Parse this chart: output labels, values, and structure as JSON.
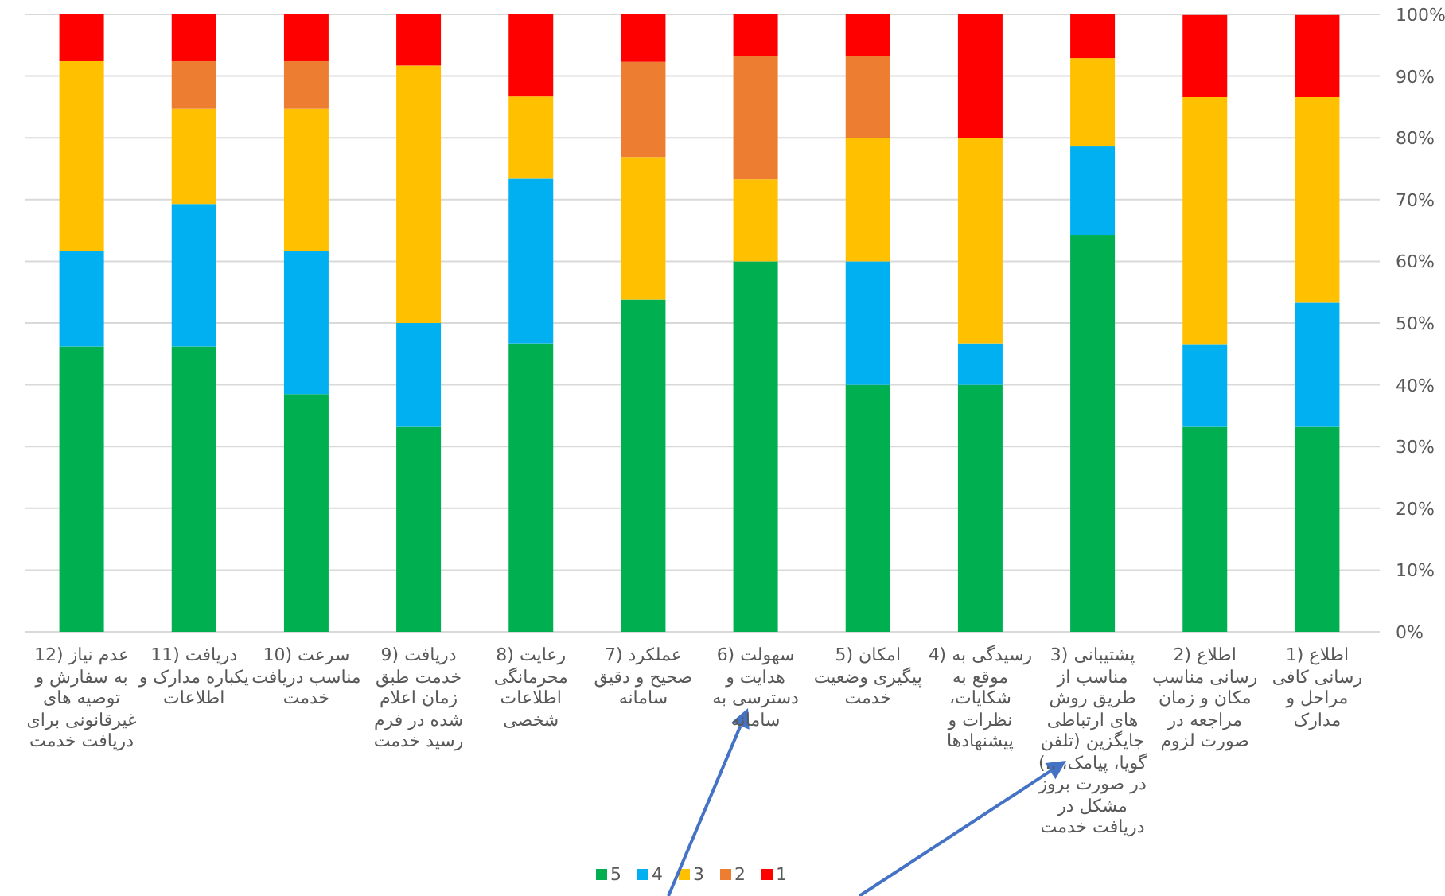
{
  "chart_data": {
    "type": "bar",
    "stacked": true,
    "grid": "y",
    "legend": "bottom",
    "categories": [
      "12) عدم نیاز به سفارش و توصیه های غیرقانونی برای دریافت خدمت",
      "11) دریافت یکباره مدارک و اطلاعات",
      "10) سرعت مناسب دریافت خدمت",
      "9) دریافت خدمت طبق زمان اعلام شده در فرم رسید خدمت",
      "8) رعایت محرمانگی اطلاعات شخصی",
      "7) عملکرد صحیح و دقیق سامانه",
      "6) سهولت هدایت و دسترسی به سامانه",
      "5) امکان پیگیری وضعیت خدمت",
      "4) رسیدگی به موقع به شکایات، نظرات و پیشنهادها",
      "3) پشتیبانی مناسب از طریق روش های ارتباطی جایگزین (تلفن گویا، پیامک، ..) در صورت بروز مشکل در دریافت خدمت",
      "2) اطلاع رسانی مناسب مکان و زمان مراجعه در صورت لزوم",
      "1) اطلاع رسانی کافی مراحل و مدارک"
    ],
    "series": [
      {
        "name": "5",
        "color": "#00b050",
        "values": [
          46.2,
          46.2,
          38.5,
          33.3,
          46.7,
          53.8,
          60,
          40,
          40,
          64.3,
          33.3,
          33.3
        ]
      },
      {
        "name": "4",
        "color": "#00b0f0",
        "values": [
          15.4,
          23.1,
          23.1,
          16.7,
          26.7,
          null,
          null,
          20,
          6.7,
          14.3,
          13.3,
          20
        ]
      },
      {
        "name": "3",
        "color": "#ffc000",
        "values": [
          30.8,
          15.4,
          23.1,
          41.7,
          13.3,
          23.1,
          13.3,
          20,
          33.3,
          14.3,
          40,
          33.3
        ]
      },
      {
        "name": "2",
        "color": "#ed7d31",
        "values": [
          null,
          7.7,
          7.7,
          null,
          null,
          15.4,
          20,
          13.3,
          null,
          null,
          null,
          null
        ]
      },
      {
        "name": "1",
        "color": "#ff0000",
        "values": [
          7.7,
          7.7,
          7.7,
          8.3,
          13.3,
          7.7,
          6.7,
          6.7,
          20,
          7.1,
          13.3,
          13.3
        ]
      }
    ],
    "ylim": [
      0,
      100
    ],
    "yticks": [
      {
        "value": 0,
        "label": "0%"
      },
      {
        "value": 10,
        "label": "10%"
      },
      {
        "value": 20,
        "label": "20%"
      },
      {
        "value": 30,
        "label": "30%"
      },
      {
        "value": 40,
        "label": "40%"
      },
      {
        "value": 50,
        "label": "50%"
      },
      {
        "value": 60,
        "label": "60%"
      },
      {
        "value": 70,
        "label": "70%"
      },
      {
        "value": 80,
        "label": "80%"
      },
      {
        "value": 90,
        "label": "90%"
      },
      {
        "value": 100,
        "label": "100%"
      }
    ]
  }
}
